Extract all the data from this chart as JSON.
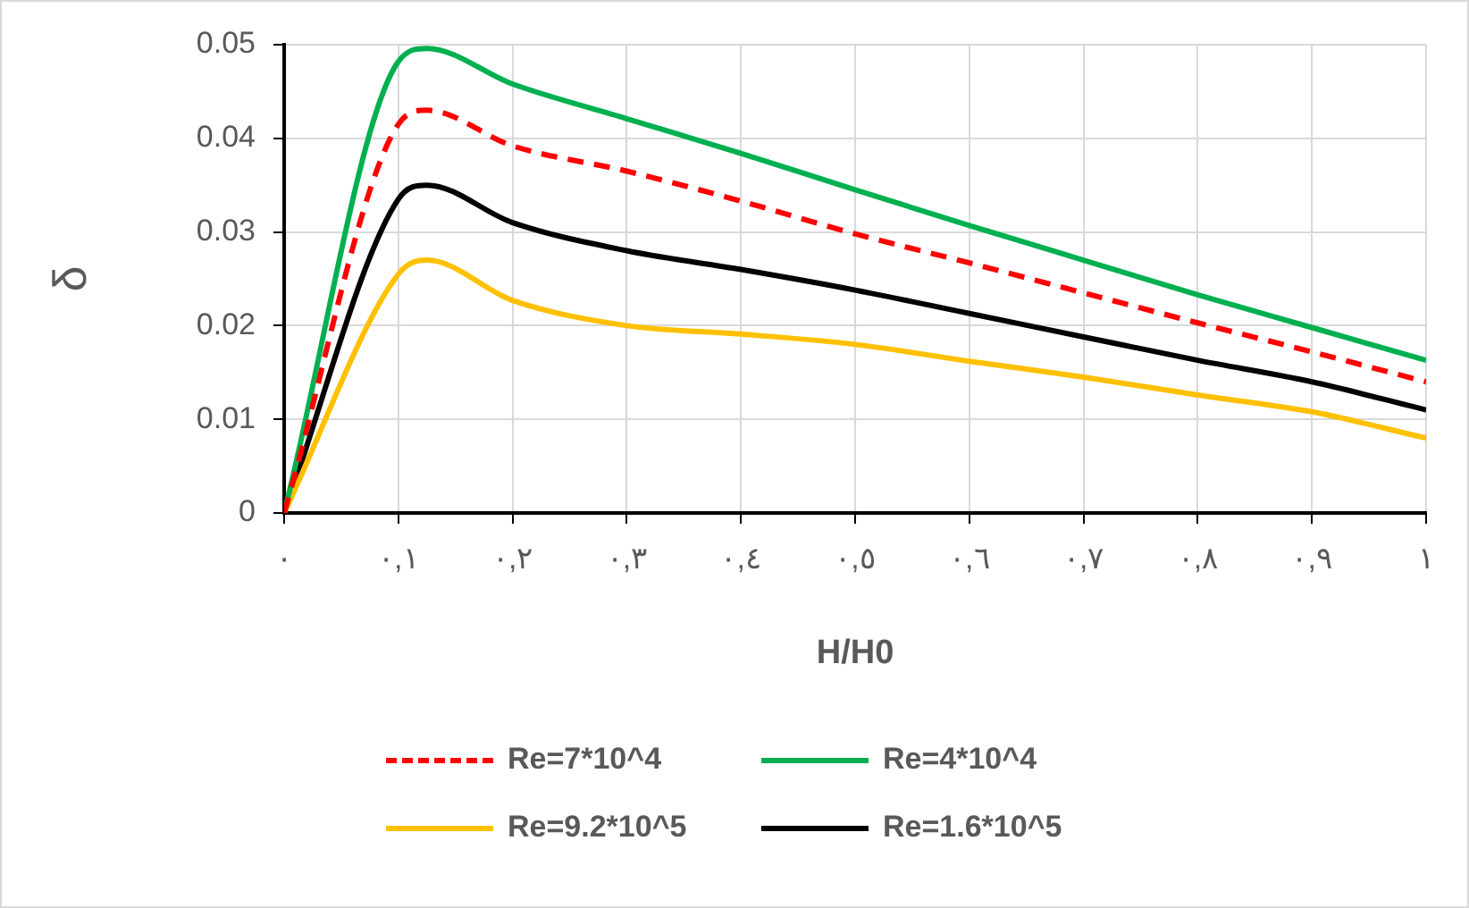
{
  "chart_data": {
    "type": "line",
    "xlabel": "H/H0",
    "ylabel": "δ",
    "x": [
      0,
      0.1,
      0.125,
      0.2,
      0.3,
      0.4,
      0.5,
      0.6,
      0.7,
      0.8,
      0.9,
      1
    ],
    "series": [
      {
        "name": "Re=7*10^4",
        "color": "#ff0000",
        "line_style": "dashed",
        "values": [
          0,
          0.0415,
          0.043,
          0.0392,
          0.0365,
          0.0333,
          0.0298,
          0.0267,
          0.0235,
          0.0203,
          0.0172,
          0.014
        ]
      },
      {
        "name": "Re=4*10^4",
        "color": "#00b050",
        "values": [
          0,
          0.0482,
          0.0496,
          0.0458,
          0.0421,
          0.0384,
          0.0345,
          0.0307,
          0.027,
          0.0233,
          0.0198,
          0.0163
        ]
      },
      {
        "name": "Re=9.2*10^5",
        "color": "#ffc000",
        "values": [
          0,
          0.0255,
          0.027,
          0.0227,
          0.02,
          0.0191,
          0.018,
          0.0162,
          0.0145,
          0.0126,
          0.0108,
          0.008
        ]
      },
      {
        "name": "Re=1.6*10^5",
        "color": "#000000",
        "values": [
          0,
          0.0335,
          0.035,
          0.031,
          0.028,
          0.026,
          0.0238,
          0.0213,
          0.0188,
          0.0163,
          0.014,
          0.011
        ]
      }
    ],
    "xlim": [
      0,
      1
    ],
    "xticks": [
      {
        "value": 0,
        "label": "٠"
      },
      {
        "value": 0.1,
        "label": "٠,١"
      },
      {
        "value": 0.2,
        "label": "٠,٢"
      },
      {
        "value": 0.3,
        "label": "٠,٣"
      },
      {
        "value": 0.4,
        "label": "٠,٤"
      },
      {
        "value": 0.5,
        "label": "٠,٥"
      },
      {
        "value": 0.6,
        "label": "٠,٦"
      },
      {
        "value": 0.7,
        "label": "٠,٧"
      },
      {
        "value": 0.8,
        "label": "٠,٨"
      },
      {
        "value": 0.9,
        "label": "٠,٩"
      },
      {
        "value": 1,
        "label": "١"
      }
    ],
    "ylim": [
      0,
      0.05
    ],
    "yticks": [
      0,
      0.01,
      0.02,
      0.03,
      0.04,
      0.05
    ],
    "grid": true,
    "legend": "bottom",
    "marker": "none",
    "line_style": "solid"
  }
}
